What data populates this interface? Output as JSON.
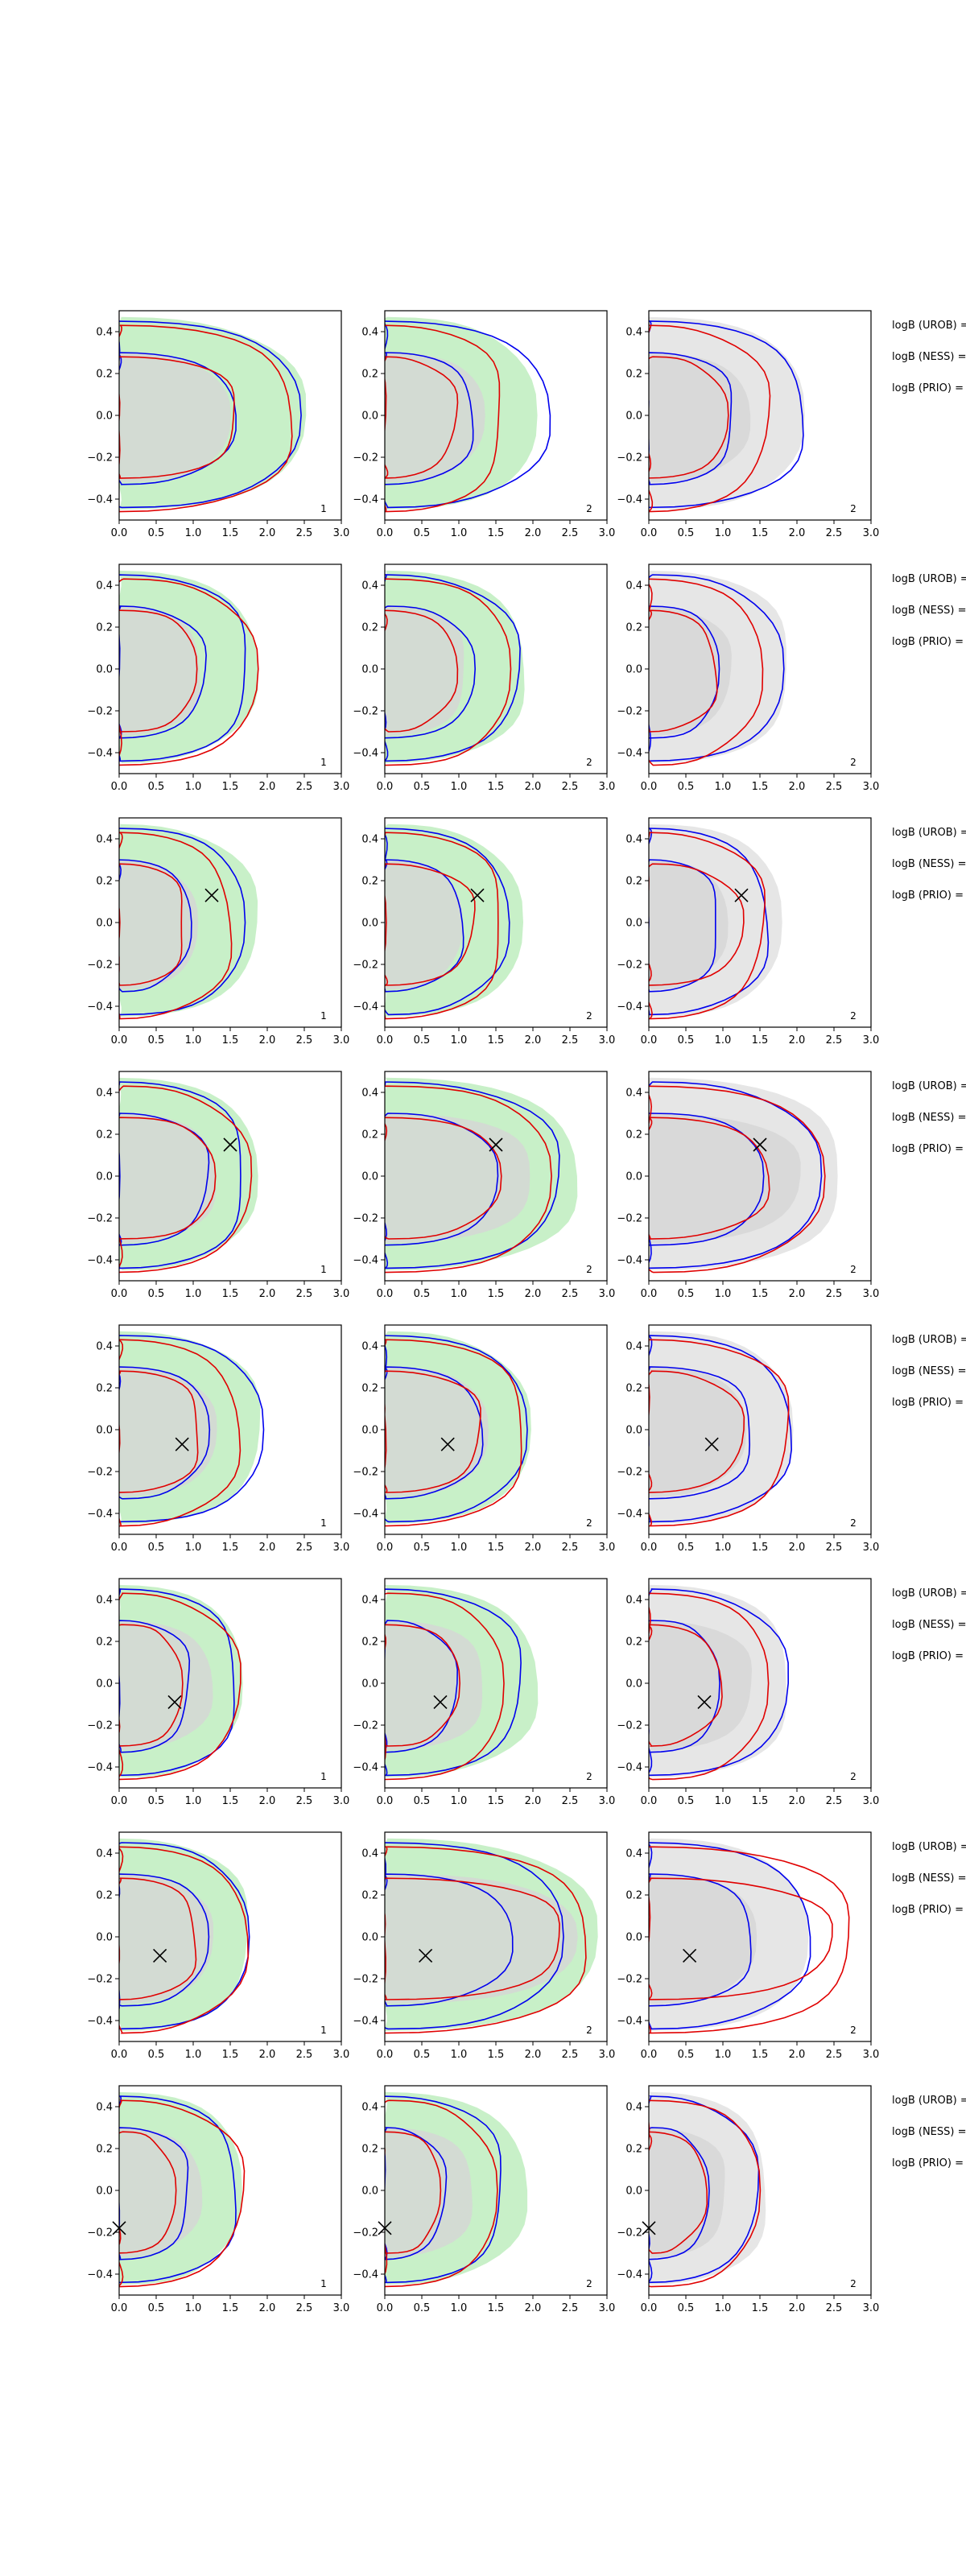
{
  "chart_data": {
    "type": "contour",
    "layout": {
      "rows": 8,
      "cols": 3
    },
    "xlim": [
      0,
      3.0
    ],
    "ylim": [
      -0.5,
      0.5
    ],
    "xticks": [
      0.0,
      0.5,
      1.0,
      1.5,
      2.0,
      2.5,
      3.0
    ],
    "xtick_labels": [
      "0.0",
      "0.5",
      "1.0",
      "1.5",
      "2.0",
      "2.5",
      "3.0"
    ],
    "yticks": [
      -0.4,
      -0.2,
      0.0,
      0.2,
      0.4
    ],
    "ytick_labels": [
      "−0.4",
      "−0.2",
      "0.0",
      "0.2",
      "0.4"
    ],
    "panel_numbers": [
      "1",
      "2",
      "2"
    ],
    "side_labels": [
      "logB (UROB) =",
      "logB (NESS) =",
      "logB (PRIO) ="
    ],
    "colors": {
      "filled_col1": "#c8f0c8",
      "filled_col2": "#c8f0c8",
      "filled_col3": "#e6e6e6",
      "inner_fill": "#d6d6d6",
      "blue_line": "#0000ee",
      "red_line": "#e00000",
      "marker": "#000000"
    },
    "markers": [
      null,
      null,
      [
        1.25,
        0.13
      ],
      [
        1.5,
        0.15
      ],
      [
        0.85,
        -0.07
      ],
      [
        0.75,
        -0.09
      ],
      [
        0.55,
        -0.09
      ],
      [
        0.0,
        -0.18
      ]
    ],
    "marker_x_cols2_3": [
      null,
      null,
      [
        1.25,
        1.25
      ],
      [
        1.5,
        1.5
      ],
      [
        0.85,
        0.85
      ],
      [
        0.75,
        0.75
      ],
      [
        0.55,
        0.55
      ],
      [
        0.0,
        0.0
      ]
    ],
    "rows": [
      {
        "fill": [
          [
            0.0,
            2.5
          ],
          [
            0.0,
            1.5
          ]
        ],
        "blue": [
          [
            0.0,
            2.45
          ],
          [
            0.0,
            1.55
          ]
        ],
        "red": [
          [
            0.0,
            2.35
          ],
          [
            0.0,
            1.6
          ]
        ],
        "fill2": [
          [
            0.0,
            2.05
          ],
          [
            0.0,
            1.35
          ]
        ],
        "blue2": [
          [
            0.0,
            2.2
          ],
          [
            0.0,
            1.2
          ]
        ],
        "red2": [
          [
            0.0,
            1.6
          ],
          [
            0.0,
            0.95
          ]
        ],
        "fill3": [
          [
            0.0,
            2.1
          ],
          [
            0.0,
            1.35
          ]
        ],
        "blue3": [
          [
            0.0,
            2.1
          ],
          [
            0.0,
            1.15
          ]
        ],
        "red3": [
          [
            0.0,
            1.6
          ],
          [
            0.0,
            1.05
          ]
        ]
      },
      {
        "fill": [
          [
            0.0,
            1.85
          ],
          [
            0.0,
            1.1
          ]
        ],
        "blue": [
          [
            0.0,
            1.75
          ],
          [
            0.0,
            1.15
          ]
        ],
        "red": [
          [
            0.0,
            1.85
          ],
          [
            0.0,
            1.05
          ]
        ],
        "fill2": [
          [
            0.0,
            1.9
          ],
          [
            0.0,
            1.1
          ]
        ],
        "blue2": [
          [
            0.0,
            1.8
          ],
          [
            0.0,
            1.2
          ]
        ],
        "red2": [
          [
            0.0,
            1.7
          ],
          [
            0.0,
            0.95
          ]
        ],
        "fill3": [
          [
            0.0,
            1.9
          ],
          [
            0.0,
            1.1
          ]
        ],
        "blue3": [
          [
            0.0,
            1.8
          ],
          [
            0.0,
            0.95
          ]
        ],
        "red3": [
          [
            0.0,
            1.5
          ],
          [
            0.0,
            0.9
          ]
        ]
      },
      {
        "fill": [
          [
            0.0,
            1.85
          ],
          [
            0.0,
            1.05
          ]
        ],
        "blue": [
          [
            0.0,
            1.7
          ],
          [
            0.0,
            0.95
          ]
        ],
        "red": [
          [
            0.0,
            1.5
          ],
          [
            0.0,
            0.9
          ]
        ],
        "fill2": [
          [
            0.0,
            1.85
          ],
          [
            0.0,
            1.05
          ]
        ],
        "blue2": [
          [
            0.0,
            1.65
          ],
          [
            0.0,
            1.05
          ]
        ],
        "red2": [
          [
            0.0,
            1.6
          ],
          [
            0.0,
            1.2
          ]
        ],
        "fill3": [
          [
            0.0,
            1.8
          ],
          [
            0.0,
            1.05
          ]
        ],
        "blue3": [
          [
            0.0,
            1.6
          ],
          [
            0.0,
            0.95
          ]
        ],
        "red3": [
          [
            0.0,
            1.55
          ],
          [
            0.0,
            1.25
          ]
        ]
      },
      {
        "fill": [
          [
            0.0,
            1.85
          ],
          [
            0.0,
            1.3
          ]
        ],
        "blue": [
          [
            0.0,
            1.7
          ],
          [
            0.0,
            1.2
          ]
        ],
        "red": [
          [
            0.0,
            1.75
          ],
          [
            0.0,
            1.3
          ]
        ],
        "fill2": [
          [
            0.0,
            2.6
          ],
          [
            0.0,
            2.0
          ]
        ],
        "blue2": [
          [
            0.0,
            2.35
          ],
          [
            0.0,
            1.5
          ]
        ],
        "red2": [
          [
            0.0,
            2.25
          ],
          [
            0.0,
            1.55
          ]
        ],
        "fill3": [
          [
            0.0,
            2.6
          ],
          [
            0.0,
            2.05
          ]
        ],
        "blue3": [
          [
            0.0,
            2.3
          ],
          [
            0.0,
            1.55
          ]
        ],
        "red3": [
          [
            0.0,
            2.35
          ],
          [
            0.0,
            1.6
          ]
        ]
      },
      {
        "fill": [
          [
            0.0,
            1.9
          ],
          [
            0.0,
            1.3
          ]
        ],
        "blue": [
          [
            0.0,
            1.95
          ],
          [
            0.0,
            1.2
          ]
        ],
        "red": [
          [
            0.0,
            1.6
          ],
          [
            0.0,
            1.1
          ]
        ],
        "fill2": [
          [
            0.0,
            1.95
          ],
          [
            0.0,
            1.4
          ]
        ],
        "blue2": [
          [
            0.0,
            1.9
          ],
          [
            0.0,
            1.3
          ]
        ],
        "red2": [
          [
            0.0,
            1.9
          ],
          [
            0.0,
            1.3
          ]
        ],
        "fill3": [
          [
            0.0,
            1.95
          ],
          [
            0.0,
            1.3
          ]
        ],
        "blue3": [
          [
            0.0,
            1.9
          ],
          [
            0.0,
            1.4
          ]
        ],
        "red3": [
          [
            0.0,
            1.9
          ],
          [
            0.0,
            1.25
          ]
        ]
      },
      {
        "fill": [
          [
            0.0,
            1.65
          ],
          [
            0.0,
            1.25
          ]
        ],
        "blue": [
          [
            0.0,
            1.6
          ],
          [
            0.0,
            0.95
          ]
        ],
        "red": [
          [
            0.0,
            1.6
          ],
          [
            0.0,
            0.85
          ]
        ],
        "fill2": [
          [
            0.0,
            2.05
          ],
          [
            0.0,
            1.35
          ]
        ],
        "blue2": [
          [
            0.0,
            1.85
          ],
          [
            0.0,
            0.95
          ]
        ],
        "red2": [
          [
            0.0,
            1.6
          ],
          [
            0.0,
            1.0
          ]
        ],
        "fill3": [
          [
            0.0,
            1.9
          ],
          [
            0.0,
            1.4
          ]
        ],
        "blue3": [
          [
            0.0,
            1.85
          ],
          [
            0.0,
            0.95
          ]
        ],
        "red3": [
          [
            0.0,
            1.6
          ],
          [
            0.0,
            0.95
          ]
        ]
      },
      {
        "fill": [
          [
            0.0,
            1.75
          ],
          [
            0.0,
            1.25
          ]
        ],
        "blue": [
          [
            0.0,
            1.75
          ],
          [
            0.0,
            1.2
          ]
        ],
        "red": [
          [
            0.0,
            1.7
          ],
          [
            0.0,
            1.05
          ]
        ],
        "fill2": [
          [
            0.0,
            2.85
          ],
          [
            0.0,
            2.6
          ]
        ],
        "blue2": [
          [
            0.0,
            2.4
          ],
          [
            0.0,
            1.7
          ]
        ],
        "red2": [
          [
            0.0,
            2.75
          ],
          [
            0.0,
            2.4
          ]
        ],
        "fill3": [
          [
            0.0,
            2.15
          ],
          [
            0.0,
            1.45
          ]
        ],
        "blue3": [
          [
            0.0,
            2.15
          ],
          [
            0.0,
            1.4
          ]
        ],
        "red3": [
          [
            0.0,
            2.75
          ],
          [
            0.0,
            2.45
          ]
        ]
      },
      {
        "fill": [
          [
            0.0,
            1.65
          ],
          [
            0.0,
            1.1
          ]
        ],
        "blue": [
          [
            0.0,
            1.6
          ],
          [
            0.0,
            0.95
          ]
        ],
        "red": [
          [
            0.0,
            1.65
          ],
          [
            0.0,
            0.75
          ]
        ],
        "fill2": [
          [
            0.0,
            1.9
          ],
          [
            0.0,
            1.2
          ]
        ],
        "blue2": [
          [
            0.0,
            1.6
          ],
          [
            0.0,
            0.8
          ]
        ],
        "red2": [
          [
            0.0,
            1.5
          ],
          [
            0.0,
            0.75
          ]
        ],
        "fill3": [
          [
            0.0,
            1.6
          ],
          [
            0.0,
            1.05
          ]
        ],
        "blue3": [
          [
            0.0,
            1.45
          ],
          [
            0.0,
            0.8
          ]
        ],
        "red3": [
          [
            0.0,
            1.5
          ],
          [
            0.0,
            0.75
          ]
        ]
      }
    ]
  }
}
